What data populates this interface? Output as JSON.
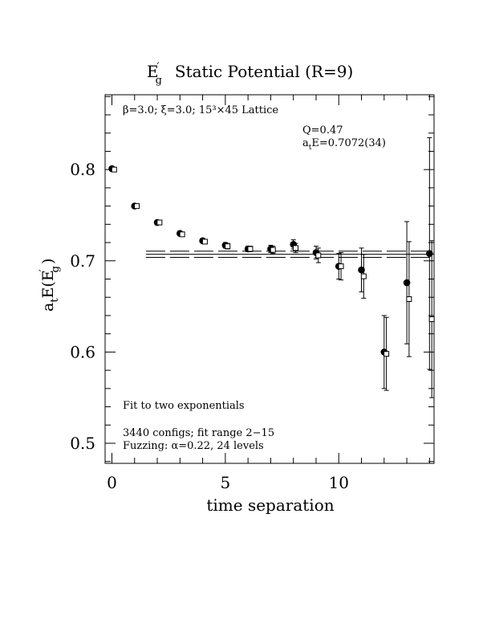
{
  "chart_data": {
    "type": "scatter",
    "title": {
      "main": "E",
      "sup": "′",
      "sub": "g",
      "rest": "Static Potential (R=9)"
    },
    "xlabel": "time separation",
    "ylabel": {
      "pre": "a",
      "pre_sub": "t",
      "mid": "E(E",
      "sup": "′",
      "sub": "g",
      "post": ")"
    },
    "xlim": [
      -0.3,
      14.2
    ],
    "ylim": [
      0.478,
      0.882
    ],
    "x_ticks": [
      0,
      5,
      10
    ],
    "x_tick_labels": [
      "0",
      "5",
      "10"
    ],
    "y_ticks": [
      0.5,
      0.6,
      0.7,
      0.8
    ],
    "y_tick_labels": [
      "0.5",
      "0.6",
      "0.7",
      "0.8"
    ],
    "annotations": {
      "lattice": "β=3.0; ξ=3.0; 15³×45 Lattice",
      "q": "Q=0.47",
      "fit_energy": "a",
      "fit_energy_sub": "t",
      "fit_energy_rest": "E=0.7072(34)",
      "fit_type": "Fit to two exponentials",
      "configs": "3440 configs; fit range 2−15",
      "fuzzing": "Fuzzing: α=0.22, 24 levels"
    },
    "fit": {
      "value": 0.7072,
      "error": 0.0034,
      "t_start": 1.5,
      "t_end": 14.2
    },
    "series": [
      {
        "marker": "filled-circle",
        "points": [
          {
            "t": 0,
            "y": 0.801,
            "err": 0.002
          },
          {
            "t": 1,
            "y": 0.76,
            "err": 0.002
          },
          {
            "t": 2,
            "y": 0.742,
            "err": 0.002
          },
          {
            "t": 3,
            "y": 0.73,
            "err": 0.002
          },
          {
            "t": 4,
            "y": 0.722,
            "err": 0.002
          },
          {
            "t": 5,
            "y": 0.717,
            "err": 0.003
          },
          {
            "t": 6,
            "y": 0.713,
            "err": 0.003
          },
          {
            "t": 7,
            "y": 0.713,
            "err": 0.004
          },
          {
            "t": 8,
            "y": 0.718,
            "err": 0.005
          },
          {
            "t": 9,
            "y": 0.709,
            "err": 0.007
          },
          {
            "t": 10,
            "y": 0.694,
            "err": 0.014
          },
          {
            "t": 11,
            "y": 0.69,
            "err": 0.024
          },
          {
            "t": 12,
            "y": 0.6,
            "err": 0.04
          },
          {
            "t": 13,
            "y": 0.676,
            "err": 0.067
          },
          {
            "t": 14,
            "y": 0.708,
            "err": 0.127
          }
        ]
      },
      {
        "marker": "open-square",
        "points": [
          {
            "t": 0.1,
            "y": 0.8,
            "err": 0.002
          },
          {
            "t": 1.1,
            "y": 0.76,
            "err": 0.002
          },
          {
            "t": 2.1,
            "y": 0.742,
            "err": 0.002
          },
          {
            "t": 3.1,
            "y": 0.729,
            "err": 0.002
          },
          {
            "t": 4.1,
            "y": 0.721,
            "err": 0.002
          },
          {
            "t": 5.1,
            "y": 0.716,
            "err": 0.003
          },
          {
            "t": 6.1,
            "y": 0.713,
            "err": 0.003
          },
          {
            "t": 7.1,
            "y": 0.712,
            "err": 0.004
          },
          {
            "t": 8.1,
            "y": 0.714,
            "err": 0.005
          },
          {
            "t": 9.1,
            "y": 0.706,
            "err": 0.008
          },
          {
            "t": 10.1,
            "y": 0.694,
            "err": 0.015
          },
          {
            "t": 11.1,
            "y": 0.683,
            "err": 0.024
          },
          {
            "t": 12.1,
            "y": 0.598,
            "err": 0.04
          },
          {
            "t": 13.1,
            "y": 0.658,
            "err": 0.063
          },
          {
            "t": 14.1,
            "y": 0.636,
            "err": 0.086
          }
        ]
      }
    ]
  }
}
